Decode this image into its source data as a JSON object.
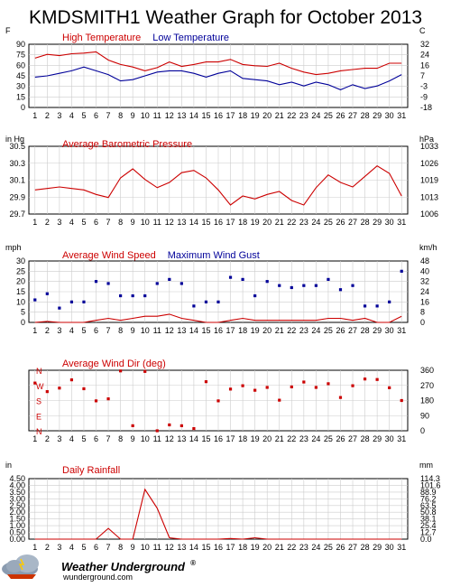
{
  "title": "KMDSMITH1 Weather Graph for October 2013",
  "colors": {
    "red": "#cc0000",
    "blue": "#000099",
    "grid": "#cccccc",
    "frame": "#000000"
  },
  "days": [
    "1",
    "2",
    "3",
    "4",
    "5",
    "6",
    "7",
    "8",
    "9",
    "10",
    "11",
    "12",
    "13",
    "14",
    "15",
    "16",
    "17",
    "18",
    "19",
    "20",
    "21",
    "22",
    "23",
    "24",
    "25",
    "26",
    "27",
    "28",
    "29",
    "30",
    "31"
  ],
  "footer": {
    "brand": "Weather Underground",
    "url": "wunderground.com",
    "registered": "®"
  },
  "chart_data": [
    {
      "id": "temperature",
      "type": "line",
      "left_unit": "F",
      "right_unit": "C",
      "yticks": [
        "0",
        "15",
        "30",
        "45",
        "60",
        "75",
        "90"
      ],
      "right_ticks": [
        "-18",
        "-9",
        "-3",
        "7",
        "16",
        "24",
        "32"
      ],
      "ylim": [
        0,
        100
      ],
      "series": [
        {
          "name": "High Temperature",
          "color": "#cc0000",
          "values": [
            78,
            84,
            82,
            85,
            86,
            88,
            75,
            68,
            64,
            58,
            63,
            72,
            65,
            68,
            72,
            72,
            76,
            68,
            66,
            65,
            70,
            62,
            56,
            52,
            54,
            58,
            60,
            62,
            62,
            70,
            70
          ]
        },
        {
          "name": "Low Temperature",
          "color": "#000099",
          "values": [
            48,
            50,
            54,
            58,
            64,
            58,
            52,
            42,
            44,
            50,
            56,
            58,
            58,
            54,
            48,
            54,
            58,
            46,
            44,
            42,
            36,
            40,
            34,
            40,
            36,
            28,
            36,
            30,
            34,
            42,
            52
          ]
        }
      ]
    },
    {
      "id": "pressure",
      "type": "line",
      "left_unit": "in Hg",
      "right_unit": "hPa",
      "yticks": [
        "29.7",
        "29.9",
        "30.1",
        "30.3",
        "30.5"
      ],
      "right_ticks": [
        "1006",
        "1013",
        "1019",
        "1026",
        "1033"
      ],
      "ylim": [
        29.7,
        30.6
      ],
      "series": [
        {
          "name": "Average Barometric Pressure",
          "color": "#cc0000",
          "values": [
            30.02,
            30.04,
            30.06,
            30.04,
            30.02,
            29.96,
            29.92,
            30.18,
            30.3,
            30.16,
            30.05,
            30.12,
            30.25,
            30.28,
            30.18,
            30.02,
            29.82,
            29.94,
            29.9,
            29.96,
            30.0,
            29.88,
            29.82,
            30.05,
            30.22,
            30.12,
            30.06,
            30.2,
            30.34,
            30.24,
            29.94
          ]
        }
      ]
    },
    {
      "id": "wind_speed",
      "type": "line",
      "left_unit": "mph",
      "right_unit": "km/h",
      "yticks": [
        "0",
        "5",
        "10",
        "15",
        "20",
        "25",
        "30"
      ],
      "right_ticks": [
        "0",
        "8",
        "16",
        "24",
        "32",
        "40",
        "48"
      ],
      "ylim": [
        0,
        30
      ],
      "series": [
        {
          "name": "Average Wind Speed",
          "color": "#cc0000",
          "values": [
            0,
            0.5,
            0,
            0,
            0,
            1,
            2,
            1,
            2,
            3,
            3,
            4,
            2,
            1,
            0,
            0,
            1,
            2,
            1,
            1,
            1,
            1,
            1,
            1,
            2,
            2,
            1,
            2,
            0,
            0,
            3
          ]
        },
        {
          "name": "Maximum Wind Gust",
          "color": "#000099",
          "type": "scatter",
          "values": [
            11,
            14,
            7,
            10,
            10,
            20,
            19,
            13,
            13,
            13,
            19,
            21,
            19,
            8,
            10,
            10,
            22,
            21,
            13,
            20,
            18,
            17,
            18,
            18,
            21,
            16,
            18,
            8,
            8,
            10,
            25
          ]
        }
      ]
    },
    {
      "id": "wind_dir",
      "type": "scatter",
      "left_unit": "",
      "right_unit": "",
      "compass": [
        "N",
        "W",
        "S",
        "E",
        "N"
      ],
      "right_ticks": [
        "0",
        "90",
        "180",
        "270",
        "360"
      ],
      "ylim": [
        0,
        360
      ],
      "series": [
        {
          "name": "Average Wind Dir (deg)",
          "color": "#cc0000",
          "values": [
            284,
            233,
            254,
            303,
            250,
            178,
            190,
            356,
            30,
            353,
            0,
            35,
            30,
            13,
            292,
            178,
            248,
            268,
            241,
            258,
            182,
            261,
            290,
            258,
            280,
            198,
            268,
            308,
            305,
            256,
            180
          ]
        }
      ]
    },
    {
      "id": "rainfall",
      "type": "line",
      "left_unit": "in",
      "right_unit": "mm",
      "yticks": [
        "0.00",
        "0.50",
        "1.00",
        "1.50",
        "2.00",
        "2.50",
        "3.00",
        "3.50",
        "4.00",
        "4.50"
      ],
      "right_ticks": [
        "0.0",
        "12.7",
        "25.4",
        "38.1",
        "50.8",
        "63.5",
        "76.2",
        "88.9",
        "101.6",
        "114.3"
      ],
      "ylim": [
        0,
        4.5
      ],
      "series": [
        {
          "name": "Daily Rainfall",
          "color": "#cc0000",
          "values": [
            0,
            0,
            0,
            0,
            0,
            0,
            0.8,
            0,
            0,
            3.7,
            2.3,
            0.1,
            0,
            0,
            0,
            0,
            0.05,
            0,
            0.1,
            0,
            0,
            0,
            0,
            0,
            0,
            0,
            0,
            0,
            0,
            0,
            0
          ]
        }
      ]
    }
  ]
}
